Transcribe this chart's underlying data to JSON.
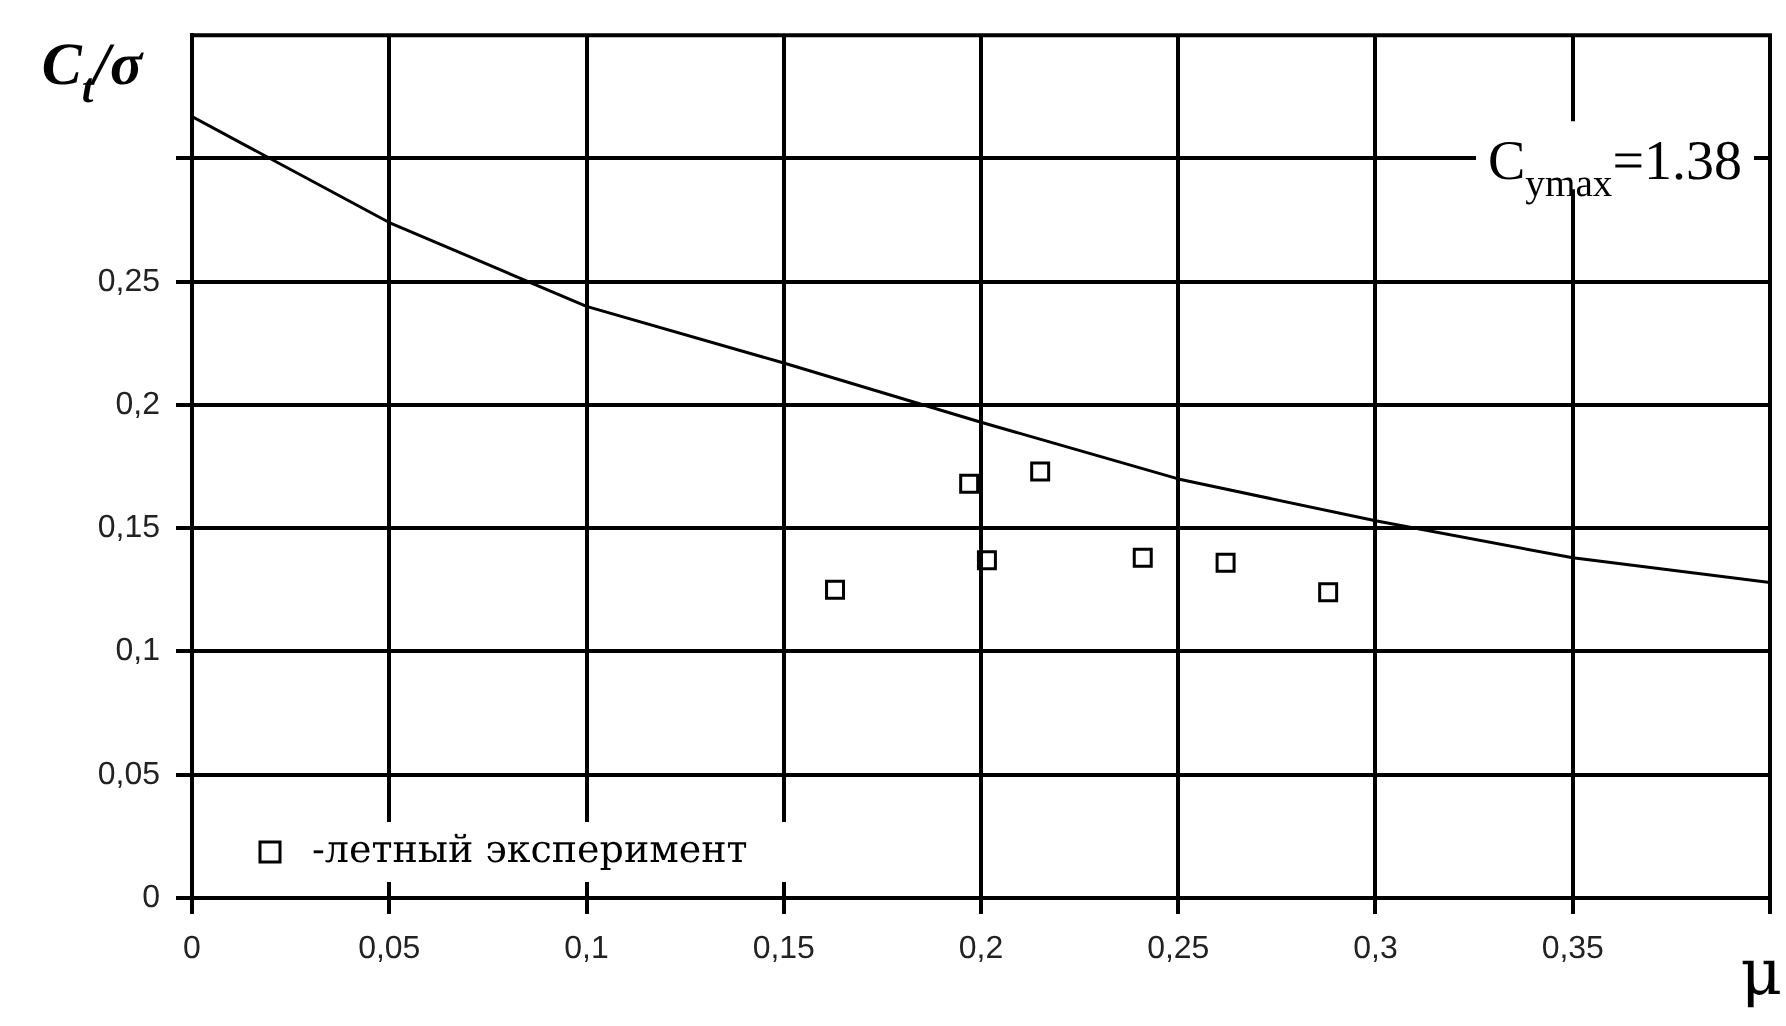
{
  "chart_data": {
    "type": "line",
    "xlabel": "μ",
    "ylabel": "C$_{t}$/σ",
    "xlim": [
      0,
      0.4
    ],
    "xticks": [
      {
        "value": 0,
        "label": "0"
      },
      {
        "value": 0.05,
        "label": "0,05"
      },
      {
        "value": 0.1,
        "label": "0,1"
      },
      {
        "value": 0.15,
        "label": "0,15"
      },
      {
        "value": 0.2,
        "label": "0,2"
      },
      {
        "value": 0.25,
        "label": "0,25"
      },
      {
        "value": 0.3,
        "label": "0,3"
      },
      {
        "value": 0.35,
        "label": "0,35"
      },
      {
        "value": 0.4,
        "label": null
      }
    ],
    "ylim": [
      0,
      0.35
    ],
    "yticks": [
      {
        "value": 0,
        "label": "0"
      },
      {
        "value": 0.05,
        "label": "0,05"
      },
      {
        "value": 0.1,
        "label": "0,1"
      },
      {
        "value": 0.15,
        "label": "0,15"
      },
      {
        "value": 0.2,
        "label": "0,2"
      },
      {
        "value": 0.25,
        "label": "0,25"
      },
      {
        "value": 0.3,
        "label": null
      }
    ],
    "grid": true,
    "legend": "bottom left",
    "line_style": "solid",
    "annotations": [
      "C$_{ymax}$=1.38"
    ],
    "series": [
      {
        "type": "line",
        "color": "#000000",
        "marker": "none",
        "x": [
          0,
          0.05,
          0.1,
          0.15,
          0.2,
          0.25,
          0.3,
          0.35,
          0.4
        ],
        "values": [
          0.317,
          0.274,
          0.24,
          0.217,
          0.193,
          0.17,
          0.153,
          0.138,
          0.128
        ]
      },
      {
        "type": "scatter",
        "name": "-летный эксперимент",
        "color": "#000000",
        "marker": "square",
        "x": [
          0.163,
          0.197,
          0.2015,
          0.215,
          0.241,
          0.262,
          0.288
        ],
        "values": [
          0.125,
          0.168,
          0.137,
          0.173,
          0.138,
          0.136,
          0.124
        ]
      }
    ]
  }
}
